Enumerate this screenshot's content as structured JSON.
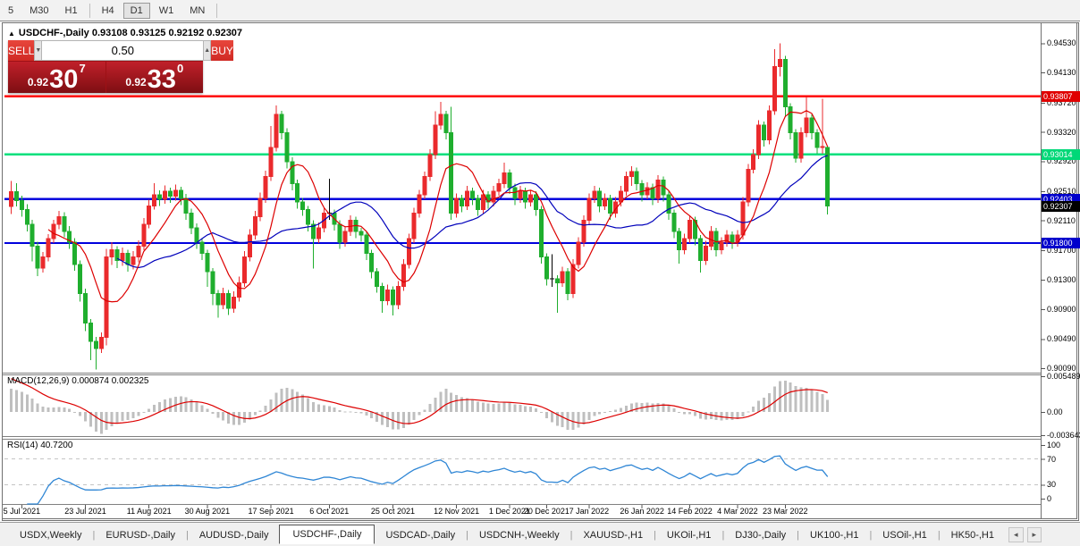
{
  "toolbar": {
    "timeframes": [
      "5",
      "M30",
      "H1",
      "H4",
      "D1",
      "W1",
      "MN"
    ],
    "active_timeframe": "D1"
  },
  "title": {
    "expander": "▲",
    "symbol": "USDCHF-,Daily",
    "ohlc": "0.93108 0.93125 0.92192 0.92307"
  },
  "trade_panel": {
    "sell_label": "SELL",
    "buy_label": "BUY",
    "volume": "0.50",
    "spinner_down": "▼",
    "spinner_up": "▲",
    "bid": {
      "small": "0.92",
      "big": "30",
      "sup": "7"
    },
    "ask": {
      "small": "0.92",
      "big": "33",
      "sup": "0"
    }
  },
  "chart_data": {
    "type": "candlestick",
    "symbol": "USDCHF-",
    "timeframe": "Daily",
    "colors": {
      "up": "#ea2a2c",
      "down": "#1fae2e",
      "doji": "#000000",
      "ma_fast": "#dd0000",
      "ma_slow": "#0000bb",
      "macd_bar": "#bfbfbf",
      "macd_signal": "#dd0000",
      "rsi": "#2f86d5"
    },
    "price_axis": {
      "min": 0.9003,
      "max": 0.9478,
      "ticks": [
        "0.94530",
        "0.94130",
        "0.93720",
        "0.93320",
        "0.92920",
        "0.92510",
        "0.92110",
        "0.91700",
        "0.91300",
        "0.90900",
        "0.90490",
        "0.90090"
      ]
    },
    "hlines": [
      {
        "price": 0.93807,
        "label": "0.93807",
        "color": "#ff0000",
        "tag_bg": "#e00000"
      },
      {
        "price": 0.93014,
        "label": "0.93014",
        "color": "#00e07c",
        "tag_bg": "#00d878"
      },
      {
        "price": 0.92403,
        "label": "0.92403",
        "color": "#0000dd",
        "tag_bg": "#0000cc"
      },
      {
        "price": 0.918,
        "label": "0.91800",
        "color": "#0000dd",
        "tag_bg": "#0000cc"
      }
    ],
    "current_price": {
      "value": 0.92307,
      "label": "0.92307",
      "tag_bg": "#000000"
    },
    "ma_periods": {
      "fast": 8,
      "slow": 21
    },
    "date_labels": [
      {
        "label": "5 Jul 2021",
        "index": 2
      },
      {
        "label": "23 Jul 2021",
        "index": 14
      },
      {
        "label": "11 Aug 2021",
        "index": 26
      },
      {
        "label": "30 Aug 2021",
        "index": 37
      },
      {
        "label": "17 Sep 2021",
        "index": 49
      },
      {
        "label": "6 Oct 2021",
        "index": 60
      },
      {
        "label": "25 Oct 2021",
        "index": 72
      },
      {
        "label": "12 Nov 2021",
        "index": 84
      },
      {
        "label": "1 Dec 2021",
        "index": 94
      },
      {
        "label": "20 Dec 2021",
        "index": 101
      },
      {
        "label": "7 Jan 2022",
        "index": 109
      },
      {
        "label": "26 Jan 2022",
        "index": 119
      },
      {
        "label": "14 Feb 2022",
        "index": 128
      },
      {
        "label": "4 Mar 2022",
        "index": 137
      },
      {
        "label": "23 Mar 2022",
        "index": 146
      }
    ],
    "macd": {
      "label": "MACD(12,26,9)",
      "value_main": "0.000874",
      "value_signal": "0.002325",
      "range": [
        -0.003643,
        0.005489
      ],
      "axis": [
        {
          "text": "0.005489",
          "v": 0.005489
        },
        {
          "text": "0.00",
          "v": 0
        },
        {
          "text": "-0.003643",
          "v": -0.003643
        }
      ]
    },
    "rsi": {
      "label": "RSI(14)",
      "value": "40.7200",
      "levels": [
        70,
        30
      ],
      "axis": [
        {
          "text": "100",
          "v": 100
        },
        {
          "text": "70",
          "v": 70
        },
        {
          "text": "30",
          "v": 30
        },
        {
          "text": "0",
          "v": 0
        }
      ]
    },
    "candles": [
      [
        0.923,
        0.9265,
        0.922,
        0.925
      ],
      [
        0.925,
        0.9262,
        0.923,
        0.9238
      ],
      [
        0.9238,
        0.9245,
        0.9216,
        0.9226
      ],
      [
        0.9226,
        0.9233,
        0.9196,
        0.9206
      ],
      [
        0.9206,
        0.9212,
        0.9155,
        0.9176
      ],
      [
        0.9176,
        0.9182,
        0.9135,
        0.9146
      ],
      [
        0.9146,
        0.9168,
        0.914,
        0.9161
      ],
      [
        0.9161,
        0.9192,
        0.9155,
        0.9186
      ],
      [
        0.9186,
        0.9212,
        0.918,
        0.9206
      ],
      [
        0.9206,
        0.9224,
        0.9199,
        0.9216
      ],
      [
        0.9216,
        0.9222,
        0.9188,
        0.9196
      ],
      [
        0.9196,
        0.9203,
        0.9172,
        0.9181
      ],
      [
        0.9181,
        0.9187,
        0.9142,
        0.9151
      ],
      [
        0.9151,
        0.9156,
        0.91,
        0.9111
      ],
      [
        0.9111,
        0.9118,
        0.906,
        0.9071
      ],
      [
        0.9071,
        0.9076,
        0.902,
        0.9046
      ],
      [
        0.9046,
        0.9052,
        0.9007,
        0.9036
      ],
      [
        0.9036,
        0.9058,
        0.903,
        0.9051
      ],
      [
        0.9051,
        0.9172,
        0.904,
        0.9161
      ],
      [
        0.9161,
        0.9181,
        0.915,
        0.9171
      ],
      [
        0.9171,
        0.9176,
        0.9146,
        0.9156
      ],
      [
        0.9156,
        0.9174,
        0.9149,
        0.9166
      ],
      [
        0.9166,
        0.9171,
        0.9141,
        0.9151
      ],
      [
        0.9151,
        0.9169,
        0.9144,
        0.9161
      ],
      [
        0.9161,
        0.9184,
        0.9154,
        0.9176
      ],
      [
        0.9176,
        0.9214,
        0.917,
        0.9206
      ],
      [
        0.9206,
        0.9239,
        0.92,
        0.9231
      ],
      [
        0.9231,
        0.9262,
        0.9226,
        0.9246
      ],
      [
        0.9246,
        0.9252,
        0.9231,
        0.924
      ],
      [
        0.924,
        0.9259,
        0.9234,
        0.9251
      ],
      [
        0.9251,
        0.9256,
        0.9235,
        0.9244
      ],
      [
        0.9244,
        0.926,
        0.9238,
        0.9252
      ],
      [
        0.9252,
        0.9257,
        0.9232,
        0.9241
      ],
      [
        0.9241,
        0.9247,
        0.9212,
        0.9221
      ],
      [
        0.9221,
        0.9227,
        0.9192,
        0.9201
      ],
      [
        0.9201,
        0.9207,
        0.9172,
        0.9181
      ],
      [
        0.9181,
        0.9187,
        0.9157,
        0.9166
      ],
      [
        0.9166,
        0.9171,
        0.912,
        0.9141
      ],
      [
        0.9141,
        0.9146,
        0.9095,
        0.9111
      ],
      [
        0.9111,
        0.9116,
        0.9078,
        0.9096
      ],
      [
        0.9096,
        0.9119,
        0.909,
        0.9111
      ],
      [
        0.9111,
        0.9116,
        0.9082,
        0.9091
      ],
      [
        0.9091,
        0.9114,
        0.9085,
        0.9106
      ],
      [
        0.9106,
        0.9134,
        0.91,
        0.9126
      ],
      [
        0.9126,
        0.9169,
        0.912,
        0.9161
      ],
      [
        0.9161,
        0.9199,
        0.9155,
        0.9191
      ],
      [
        0.9191,
        0.9224,
        0.9185,
        0.9216
      ],
      [
        0.9216,
        0.9249,
        0.921,
        0.9241
      ],
      [
        0.9241,
        0.9279,
        0.9235,
        0.9271
      ],
      [
        0.9271,
        0.934,
        0.9265,
        0.9311
      ],
      [
        0.9311,
        0.9368,
        0.9305,
        0.9356
      ],
      [
        0.9356,
        0.9361,
        0.9322,
        0.9331
      ],
      [
        0.9331,
        0.9337,
        0.9282,
        0.9291
      ],
      [
        0.9291,
        0.9297,
        0.9252,
        0.9261
      ],
      [
        0.9261,
        0.9267,
        0.9227,
        0.9236
      ],
      [
        0.9236,
        0.9242,
        0.9217,
        0.9226
      ],
      [
        0.9226,
        0.9231,
        0.9196,
        0.9206
      ],
      [
        0.9206,
        0.9211,
        0.9145,
        0.9186
      ],
      [
        0.9186,
        0.9208,
        0.918,
        0.9201
      ],
      [
        0.9201,
        0.9228,
        0.9195,
        0.9221
      ],
      [
        0.9221,
        0.9268,
        0.9212,
        0.9221
      ],
      [
        0.9221,
        0.9226,
        0.9197,
        0.9206
      ],
      [
        0.9206,
        0.9211,
        0.9172,
        0.9181
      ],
      [
        0.9181,
        0.9203,
        0.9175,
        0.9196
      ],
      [
        0.9196,
        0.9218,
        0.919,
        0.9211
      ],
      [
        0.9211,
        0.9216,
        0.9187,
        0.9196
      ],
      [
        0.9196,
        0.9201,
        0.9182,
        0.9191
      ],
      [
        0.9191,
        0.9196,
        0.9157,
        0.9166
      ],
      [
        0.9166,
        0.9171,
        0.9132,
        0.9141
      ],
      [
        0.9141,
        0.9146,
        0.9112,
        0.9121
      ],
      [
        0.9121,
        0.9126,
        0.9085,
        0.9101
      ],
      [
        0.9101,
        0.9123,
        0.9095,
        0.9116
      ],
      [
        0.9116,
        0.9121,
        0.9081,
        0.9096
      ],
      [
        0.9096,
        0.9128,
        0.909,
        0.9121
      ],
      [
        0.9121,
        0.9158,
        0.9115,
        0.9151
      ],
      [
        0.9151,
        0.9193,
        0.9145,
        0.9186
      ],
      [
        0.9186,
        0.9228,
        0.918,
        0.9221
      ],
      [
        0.9221,
        0.9253,
        0.9215,
        0.9246
      ],
      [
        0.9246,
        0.9278,
        0.924,
        0.9271
      ],
      [
        0.9271,
        0.9308,
        0.9265,
        0.9301
      ],
      [
        0.9301,
        0.936,
        0.9295,
        0.9341
      ],
      [
        0.9341,
        0.9373,
        0.9335,
        0.9356
      ],
      [
        0.9356,
        0.9361,
        0.9322,
        0.9331
      ],
      [
        0.9331,
        0.9366,
        0.9212,
        0.9221
      ],
      [
        0.9221,
        0.9248,
        0.9215,
        0.9241
      ],
      [
        0.9241,
        0.9246,
        0.9222,
        0.9231
      ],
      [
        0.9231,
        0.9258,
        0.9225,
        0.9251
      ],
      [
        0.9251,
        0.9256,
        0.9232,
        0.9241
      ],
      [
        0.9241,
        0.9246,
        0.9217,
        0.9226
      ],
      [
        0.9226,
        0.9253,
        0.922,
        0.9246
      ],
      [
        0.9246,
        0.9251,
        0.9227,
        0.9236
      ],
      [
        0.9236,
        0.9258,
        0.923,
        0.9251
      ],
      [
        0.9251,
        0.9268,
        0.9245,
        0.9261
      ],
      [
        0.9261,
        0.929,
        0.9255,
        0.9276
      ],
      [
        0.9276,
        0.9281,
        0.9247,
        0.9256
      ],
      [
        0.9256,
        0.9261,
        0.9232,
        0.9241
      ],
      [
        0.9241,
        0.9258,
        0.9235,
        0.9251
      ],
      [
        0.9251,
        0.9256,
        0.9227,
        0.9236
      ],
      [
        0.9236,
        0.9253,
        0.923,
        0.9246
      ],
      [
        0.9246,
        0.9251,
        0.9217,
        0.9226
      ],
      [
        0.9226,
        0.9231,
        0.9152,
        0.9161
      ],
      [
        0.9161,
        0.9166,
        0.9122,
        0.9131
      ],
      [
        0.9131,
        0.9165,
        0.912,
        0.9131
      ],
      [
        0.9131,
        0.9136,
        0.9085,
        0.9126
      ],
      [
        0.9126,
        0.9148,
        0.912,
        0.9141
      ],
      [
        0.9141,
        0.9146,
        0.9102,
        0.9111
      ],
      [
        0.9111,
        0.9158,
        0.9105,
        0.9151
      ],
      [
        0.9151,
        0.9188,
        0.9145,
        0.9181
      ],
      [
        0.9181,
        0.9218,
        0.9175,
        0.9211
      ],
      [
        0.9211,
        0.9248,
        0.9205,
        0.9241
      ],
      [
        0.9241,
        0.9258,
        0.9235,
        0.9251
      ],
      [
        0.9251,
        0.9256,
        0.9222,
        0.9231
      ],
      [
        0.9231,
        0.9248,
        0.9225,
        0.9241
      ],
      [
        0.9241,
        0.9246,
        0.9212,
        0.9221
      ],
      [
        0.9221,
        0.9243,
        0.9215,
        0.9236
      ],
      [
        0.9236,
        0.9258,
        0.923,
        0.9251
      ],
      [
        0.9251,
        0.9278,
        0.9245,
        0.9271
      ],
      [
        0.9271,
        0.9285,
        0.9258,
        0.9278
      ],
      [
        0.9278,
        0.9283,
        0.9252,
        0.9261
      ],
      [
        0.9261,
        0.9266,
        0.9237,
        0.9246
      ],
      [
        0.9246,
        0.9263,
        0.924,
        0.9256
      ],
      [
        0.9256,
        0.9261,
        0.9232,
        0.9241
      ],
      [
        0.9241,
        0.9273,
        0.9235,
        0.9266
      ],
      [
        0.9266,
        0.9271,
        0.9237,
        0.9246
      ],
      [
        0.9246,
        0.9251,
        0.9212,
        0.9221
      ],
      [
        0.9221,
        0.9226,
        0.9187,
        0.9196
      ],
      [
        0.9196,
        0.9201,
        0.9152,
        0.9171
      ],
      [
        0.9171,
        0.9193,
        0.9165,
        0.9186
      ],
      [
        0.9186,
        0.9218,
        0.918,
        0.9211
      ],
      [
        0.9211,
        0.9216,
        0.9177,
        0.9186
      ],
      [
        0.9186,
        0.9191,
        0.914,
        0.9156
      ],
      [
        0.9156,
        0.9183,
        0.915,
        0.9176
      ],
      [
        0.9176,
        0.9203,
        0.917,
        0.9196
      ],
      [
        0.9196,
        0.9201,
        0.9162,
        0.9171
      ],
      [
        0.9171,
        0.9188,
        0.9165,
        0.9181
      ],
      [
        0.9181,
        0.9198,
        0.9175,
        0.9191
      ],
      [
        0.9191,
        0.9196,
        0.9172,
        0.9181
      ],
      [
        0.9181,
        0.9198,
        0.9175,
        0.9191
      ],
      [
        0.9191,
        0.9243,
        0.9185,
        0.9236
      ],
      [
        0.9236,
        0.9288,
        0.923,
        0.9281
      ],
      [
        0.9281,
        0.9308,
        0.9275,
        0.9301
      ],
      [
        0.9301,
        0.9348,
        0.9295,
        0.9341
      ],
      [
        0.9341,
        0.9346,
        0.9312,
        0.9321
      ],
      [
        0.9321,
        0.9368,
        0.9315,
        0.9361
      ],
      [
        0.9361,
        0.9445,
        0.9355,
        0.9421
      ],
      [
        0.9421,
        0.9453,
        0.9408,
        0.9431
      ],
      [
        0.9431,
        0.9436,
        0.9352,
        0.9366
      ],
      [
        0.9366,
        0.9371,
        0.9322,
        0.9331
      ],
      [
        0.9331,
        0.9336,
        0.929,
        0.9296
      ],
      [
        0.9296,
        0.9338,
        0.929,
        0.9331
      ],
      [
        0.9331,
        0.9381,
        0.9325,
        0.9351
      ],
      [
        0.9351,
        0.9356,
        0.9322,
        0.9331
      ],
      [
        0.9331,
        0.9336,
        0.9302,
        0.9311
      ],
      [
        0.9311,
        0.9377,
        0.9302,
        0.9312
      ],
      [
        0.93108,
        0.93125,
        0.92192,
        0.92307
      ]
    ]
  },
  "tabs": {
    "items": [
      "USDX,Weekly",
      "EURUSD-,Daily",
      "AUDUSD-,Daily",
      "USDCHF-,Daily",
      "USDCAD-,Daily",
      "USDCNH-,Weekly",
      "XAUUSD-,H1",
      "UKOil-,H1",
      "DJ30-,Daily",
      "UK100-,H1",
      "USOil-,H1",
      "HK50-,H1"
    ],
    "active_index": 3,
    "nav_left": "◂",
    "nav_right": "▸"
  }
}
